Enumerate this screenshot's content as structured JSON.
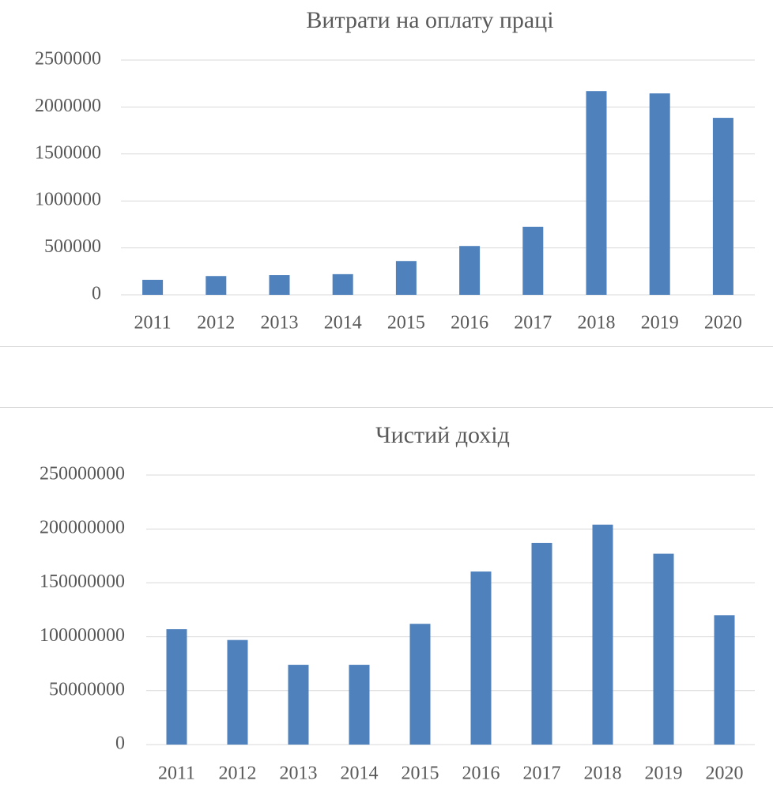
{
  "chart_data": [
    {
      "type": "bar",
      "title": "Витрати на оплату праці",
      "categories": [
        "2011",
        "2012",
        "2013",
        "2014",
        "2015",
        "2016",
        "2017",
        "2018",
        "2019",
        "2020"
      ],
      "values": [
        160000,
        200000,
        210000,
        220000,
        360000,
        520000,
        725000,
        2170000,
        2145000,
        1885000
      ],
      "color": "#4f81bd",
      "ylim": [
        0,
        2500000
      ],
      "yticks": [
        0,
        500000,
        1000000,
        1500000,
        2000000,
        2500000
      ],
      "grid": true
    },
    {
      "type": "bar",
      "title": "Чистий дохід",
      "categories": [
        "2011",
        "2012",
        "2013",
        "2014",
        "2015",
        "2016",
        "2017",
        "2018",
        "2019",
        "2020"
      ],
      "values": [
        107000000,
        97000000,
        74000000,
        74000000,
        112000000,
        160500000,
        187000000,
        204000000,
        177000000,
        120000000
      ],
      "color": "#4f81bd",
      "ylim": [
        0,
        250000000
      ],
      "yticks": [
        0,
        50000000,
        100000000,
        150000000,
        200000000,
        250000000
      ],
      "grid": true
    }
  ]
}
